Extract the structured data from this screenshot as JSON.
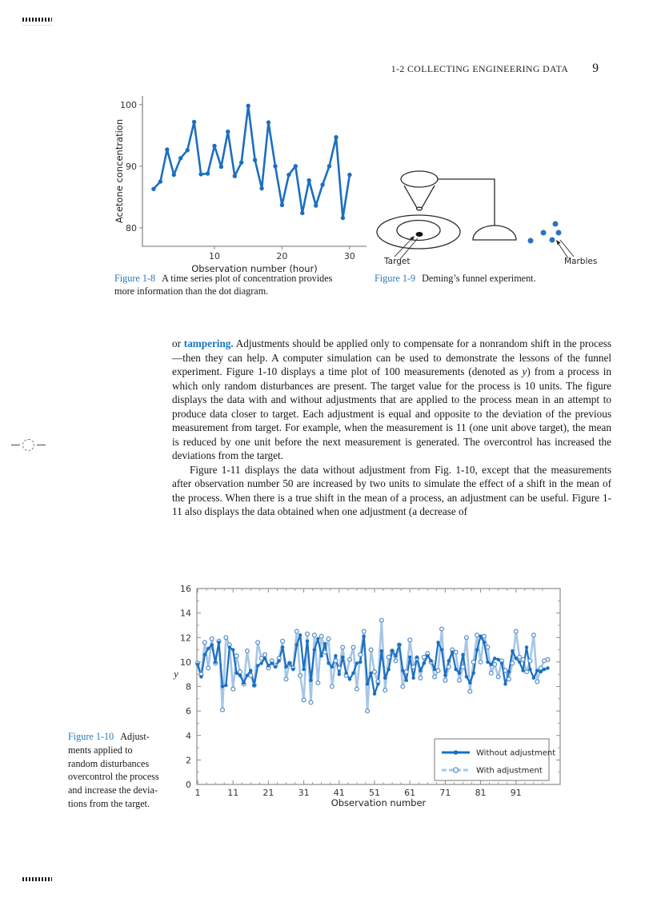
{
  "page": {
    "header": "1-2  COLLECTING ENGINEERING DATA",
    "number": "9"
  },
  "figure18": {
    "caption": [
      {
        "t": "Figure 1-8",
        "s": "fig"
      },
      {
        "t": "A time series plot of concentration provides\nmore information than the dot diagram."
      }
    ]
  },
  "figure19": {
    "target_label": "Target",
    "marbles_label": "Marbles",
    "caption": [
      {
        "t": "Figure 1-9",
        "s": "fig"
      },
      {
        "t": "Deming’s funnel experiment."
      }
    ]
  },
  "body": {
    "para1": [
      {
        "t": "or "
      },
      {
        "t": "tampering.",
        "s": "term"
      },
      {
        "t": " Adjustments should be applied only to compensate for a nonrandom shift in the process—then they can help. A computer simulation can be used to demonstrate the lessons of the funnel experiment. Figure 1-10 displays a time plot of 100 measurements (denoted as "
      },
      {
        "t": "y",
        "s": "it"
      },
      {
        "t": ") from a process in which only random disturbances are present. The target value for the process is 10 units. The figure displays the data with and without adjustments that are applied to the process mean in an attempt to produce data closer to target. Each adjustment is equal and opposite to the deviation of the previous measurement from target. For example, when the measurement is 11 (one unit above target), the mean is reduced by one unit before the next measurement is generated. The overcontrol has increased the deviations from the target."
      }
    ],
    "para2": [
      {
        "t": "Figure 1-11 displays the data without adjustment from Fig. 1-10, except that the measurements after observation number 50 are increased by two units to simulate the effect of a shift in the mean of the process. When there is a true shift in the mean of a process, an adjustment can be useful. Figure 1-11 also displays the data obtained when one adjustment (a decrease of"
      }
    ]
  },
  "figure110": {
    "caption": [
      {
        "t": "Figure 1-10",
        "s": "fig"
      },
      {
        "t": "Adjust-\nments applied to\nrandom disturbances\novercontrol the process\nand increase the devia-\ntions from the target."
      }
    ]
  },
  "chart_data": [
    {
      "id": "fig18",
      "type": "line",
      "title": "",
      "xlabel": "Observation number (hour)",
      "ylabel": "Acetone concentration",
      "xlim": [
        -0.65,
        32.5
      ],
      "ylim": [
        77,
        101.4
      ],
      "xticks": [
        10,
        20,
        30
      ],
      "yticks": [
        80,
        90,
        100
      ],
      "grid": false,
      "legend": false,
      "series": [
        {
          "name": "Acetone concentration",
          "color": "#1b6fc0",
          "marker": "filled",
          "x_start": 1,
          "values": [
            86.3,
            87.5,
            92.7,
            88.6,
            91.3,
            92.6,
            97.2,
            88.7,
            88.8,
            93.3,
            89.9,
            95.6,
            88.4,
            90.6,
            99.8,
            91.0,
            86.4,
            97.1,
            90.0,
            83.7,
            88.6,
            90.0,
            82.4,
            87.7,
            83.6,
            87.0,
            90.0,
            94.7,
            81.6,
            88.6
          ]
        }
      ]
    },
    {
      "id": "fig110",
      "type": "line",
      "title": "",
      "xlabel": "Observation number",
      "ylabel": "y",
      "xlim": [
        0.77,
        103.5
      ],
      "ylim": [
        0,
        16
      ],
      "xticks": [
        1,
        11,
        21,
        31,
        41,
        51,
        61,
        71,
        81,
        91
      ],
      "yticks": [
        0,
        2,
        4,
        6,
        8,
        10,
        12,
        14,
        16
      ],
      "grid": false,
      "legend": true,
      "legend_position": "bottom-right",
      "target_value": 10,
      "series": [
        {
          "name": "Without adjustment",
          "color": "#1b6fc0",
          "marker": "filled",
          "x_start": 1,
          "values": [
            9.8,
            8.8,
            10.6,
            11.1,
            11.4,
            10.0,
            11.6,
            8.0,
            8.1,
            11.2,
            11.0,
            9.1,
            8.9,
            8.3,
            8.9,
            9.3,
            8.1,
            9.7,
            9.9,
            10.3,
            9.7,
            9.9,
            9.6,
            10.1,
            11.2,
            9.6,
            9.9,
            9.4,
            11.4,
            12.2,
            9.4,
            11.7,
            8.5,
            11.0,
            11.9,
            10.5,
            11.5,
            9.9,
            9.6,
            10.5,
            9.0,
            10.4,
            9.1,
            8.6,
            9.1,
            9.9,
            10.0,
            12.1,
            8.2,
            9.1,
            7.4,
            8.2,
            10.9,
            8.7,
            9.4,
            10.9,
            10.5,
            11.4,
            9.3,
            8.5,
            10.4,
            8.7,
            10.4,
            9.3,
            9.9,
            10.5,
            10.1,
            9.4,
            11.6,
            11.0,
            8.9,
            10.1,
            10.8,
            9.4,
            9.1,
            10.6,
            8.8,
            8.3,
            9.1,
            11.0,
            12.1,
            11.6,
            10.0,
            9.8,
            10.3,
            10.2,
            9.9,
            8.2,
            9.2,
            10.9,
            10.3,
            10.0,
            9.3,
            11.2,
            9.4,
            8.7,
            9.3,
            9.2,
            9.4,
            9.5
          ]
        },
        {
          "name": "With adjustment",
          "color": "#a6c6e8",
          "marker": "open",
          "marker_stroke": "#5e94cc",
          "legend_dash": "6,3",
          "x_start": 1,
          "values": [
            9.9,
            9.0,
            11.6,
            9.5,
            11.9,
            9.9,
            11.7,
            6.1,
            12.0,
            11.4,
            7.8,
            10.5,
            9.2,
            8.2,
            10.9,
            8.9,
            8.1,
            11.6,
            10.3,
            10.6,
            9.5,
            10.1,
            9.7,
            10.3,
            11.7,
            8.6,
            9.9,
            9.5,
            12.5,
            8.9,
            6.9,
            12.3,
            6.7,
            12.2,
            8.3,
            12.1,
            10.8,
            11.9,
            8.0,
            10.1,
            9.5,
            11.2,
            8.9,
            10.2,
            11.2,
            7.8,
            10.6,
            12.5,
            6.0,
            11.0,
            9.2,
            8.4,
            13.4,
            7.7,
            10.4,
            10.9,
            10.1,
            11.4,
            8.0,
            9.2,
            11.8,
            9.6,
            10.3,
            8.7,
            10.4,
            10.7,
            10.0,
            8.8,
            9.3,
            12.7,
            8.5,
            9.6,
            11.0,
            10.8,
            8.5,
            9.6,
            12.0,
            7.6,
            10.0,
            12.2,
            10.0,
            12.1,
            11.2,
            9.1,
            9.8,
            8.8,
            10.1,
            9.3,
            8.6,
            9.9,
            12.5,
            10.4,
            10.2,
            9.2,
            10.1,
            12.2,
            8.4,
            9.5,
            10.1,
            10.2
          ]
        }
      ]
    }
  ]
}
